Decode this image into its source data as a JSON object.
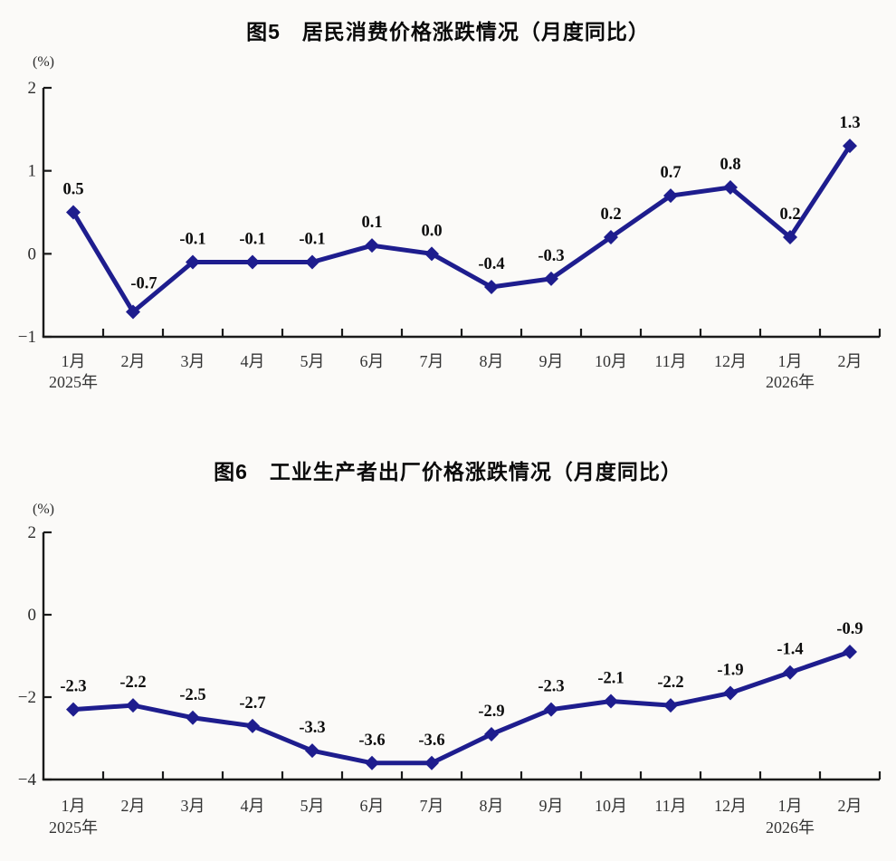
{
  "chart_data": [
    {
      "type": "line",
      "title": "图5　居民消费价格涨跌情况（月度同比）",
      "ylabel": "(%)",
      "xlabel": "",
      "categories": [
        "1月",
        "2月",
        "3月",
        "4月",
        "5月",
        "6月",
        "7月",
        "8月",
        "9月",
        "10月",
        "11月",
        "12月",
        "1月",
        "2月"
      ],
      "year_annotations": [
        {
          "index": 0,
          "label": "2025年"
        },
        {
          "index": 12,
          "label": "2026年"
        }
      ],
      "values": [
        0.5,
        -0.7,
        -0.1,
        -0.1,
        -0.1,
        0.1,
        0.0,
        -0.4,
        -0.3,
        0.2,
        0.7,
        0.8,
        0.2,
        1.3
      ],
      "data_labels": [
        "0.5",
        "-0.7",
        "-0.1",
        "-0.1",
        "-0.1",
        "0.1",
        "0.0",
        "-0.4",
        "-0.3",
        "0.2",
        "0.7",
        "0.8",
        "0.2",
        "1.3"
      ],
      "y_ticks": [
        2,
        1,
        0,
        -1
      ],
      "y_tick_labels": [
        "2",
        "1",
        "0",
        "−1"
      ],
      "ylim": [
        -1,
        2
      ],
      "line_color": "#1e1d8e",
      "marker": "diamond",
      "grid": false,
      "legend": "none"
    },
    {
      "type": "line",
      "title": "图6　工业生产者出厂价格涨跌情况（月度同比）",
      "ylabel": "(%)",
      "xlabel": "",
      "categories": [
        "1月",
        "2月",
        "3月",
        "4月",
        "5月",
        "6月",
        "7月",
        "8月",
        "9月",
        "10月",
        "11月",
        "12月",
        "1月",
        "2月"
      ],
      "year_annotations": [
        {
          "index": 0,
          "label": "2025年"
        },
        {
          "index": 12,
          "label": "2026年"
        }
      ],
      "values": [
        -2.3,
        -2.2,
        -2.5,
        -2.7,
        -3.3,
        -3.6,
        -3.6,
        -2.9,
        -2.3,
        -2.1,
        -2.2,
        -1.9,
        -1.4,
        -0.9
      ],
      "data_labels": [
        "-2.3",
        "-2.2",
        "-2.5",
        "-2.7",
        "-3.3",
        "-3.6",
        "-3.6",
        "-2.9",
        "-2.3",
        "-2.1",
        "-2.2",
        "-1.9",
        "-1.4",
        "-0.9"
      ],
      "y_ticks": [
        2,
        0,
        -2,
        -4
      ],
      "y_tick_labels": [
        "2",
        "0",
        "−2",
        "−4"
      ],
      "ylim": [
        -4,
        2
      ],
      "line_color": "#1e1d8e",
      "marker": "diamond",
      "grid": false,
      "legend": "none"
    }
  ]
}
